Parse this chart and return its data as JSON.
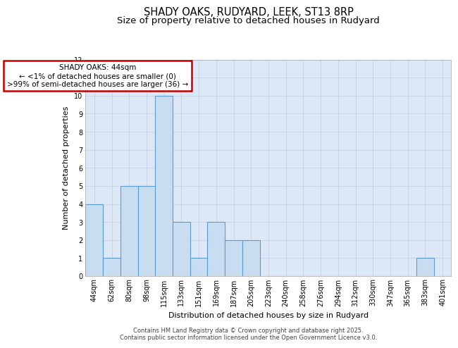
{
  "title1": "SHADY OAKS, RUDYARD, LEEK, ST13 8RP",
  "title2": "Size of property relative to detached houses in Rudyard",
  "xlabel": "Distribution of detached houses by size in Rudyard",
  "ylabel": "Number of detached properties",
  "categories": [
    "44sqm",
    "62sqm",
    "80sqm",
    "98sqm",
    "115sqm",
    "133sqm",
    "151sqm",
    "169sqm",
    "187sqm",
    "205sqm",
    "223sqm",
    "240sqm",
    "258sqm",
    "276sqm",
    "294sqm",
    "312sqm",
    "330sqm",
    "347sqm",
    "365sqm",
    "383sqm",
    "401sqm"
  ],
  "values": [
    4,
    1,
    5,
    5,
    10,
    3,
    1,
    3,
    2,
    2,
    0,
    0,
    0,
    0,
    0,
    0,
    0,
    0,
    0,
    1,
    0
  ],
  "bar_color": "#c9ddf0",
  "bar_edge_color": "#5b9bd5",
  "annotation_box_text": "SHADY OAKS: 44sqm\n← <1% of detached houses are smaller (0)\n>99% of semi-detached houses are larger (36) →",
  "annotation_box_facecolor": "#ffffff",
  "annotation_box_edgecolor": "#c00000",
  "ylim": [
    0,
    12
  ],
  "yticks": [
    0,
    1,
    2,
    3,
    4,
    5,
    6,
    7,
    8,
    9,
    10,
    11,
    12
  ],
  "grid_color": "#c8d4e8",
  "plot_bg_color": "#dce8f5",
  "fig_bg_color": "#ffffff",
  "footer": "Contains HM Land Registry data © Crown copyright and database right 2025.\nContains public sector information licensed under the Open Government Licence v3.0.",
  "title_fontsize": 10.5,
  "subtitle_fontsize": 9.5,
  "axis_label_fontsize": 8,
  "tick_fontsize": 7,
  "footer_fontsize": 6,
  "annotation_fontsize": 7.5
}
